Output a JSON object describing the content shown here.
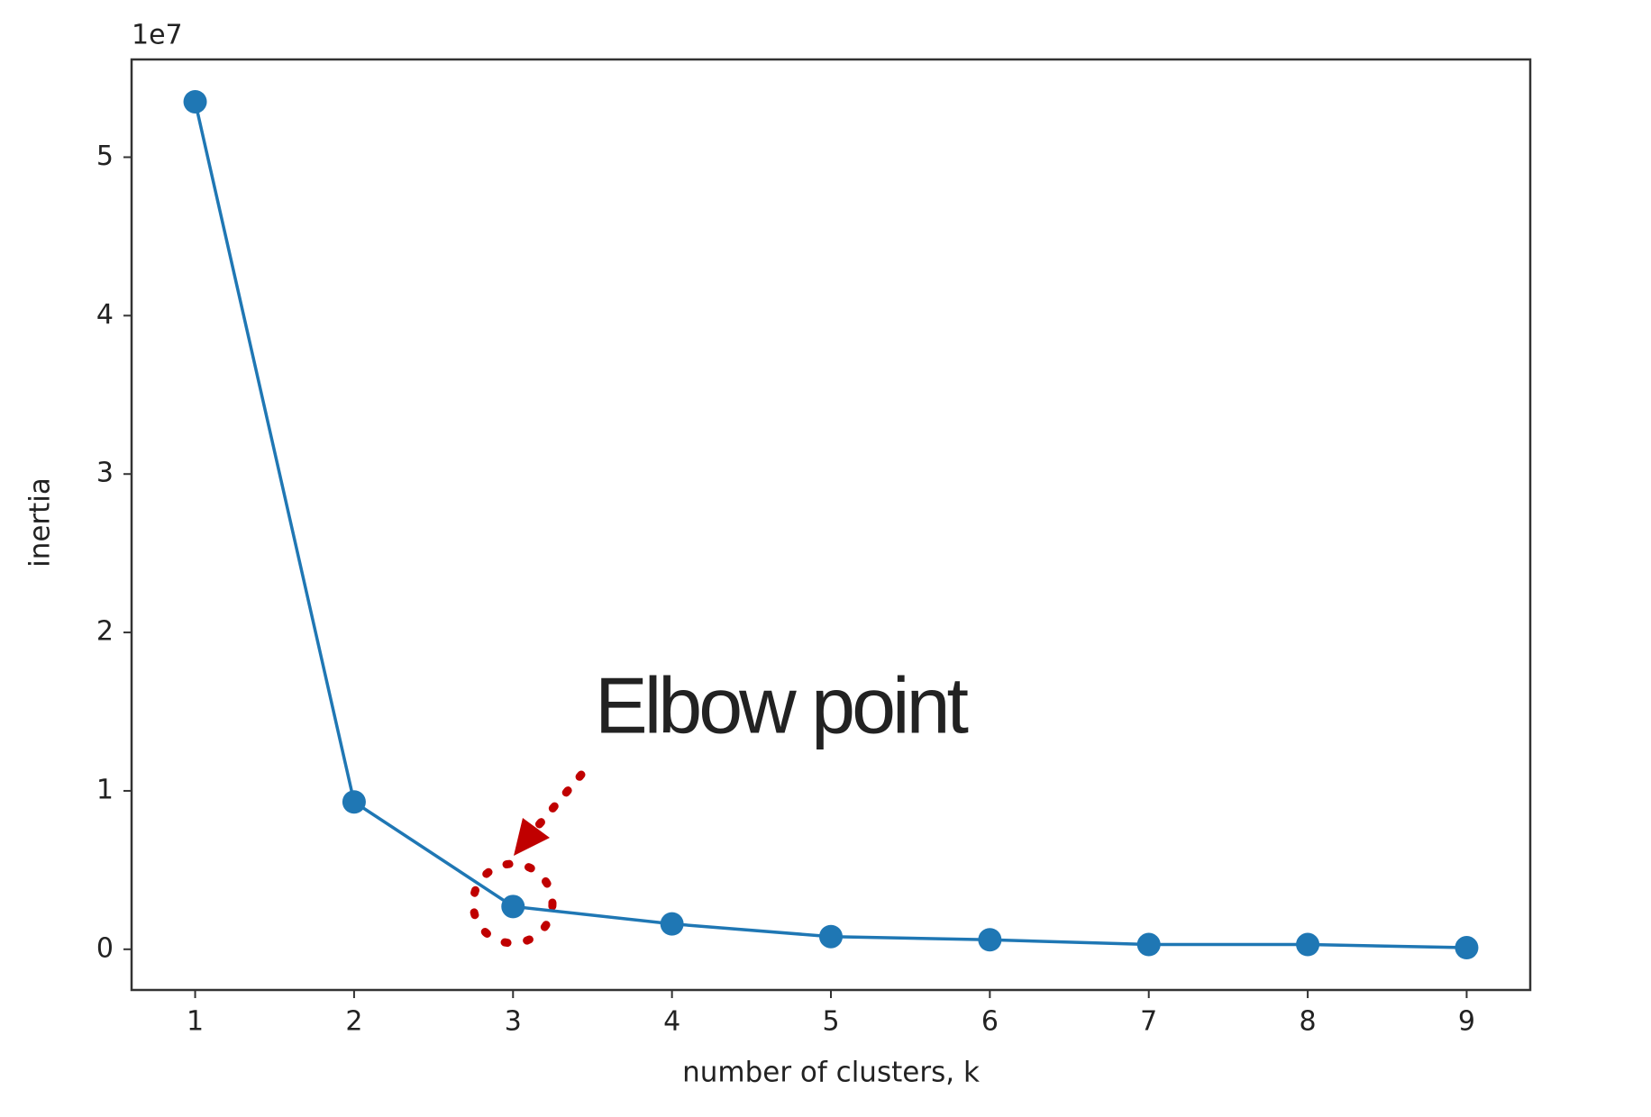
{
  "chart_data": {
    "type": "line",
    "offset_label": "1e7",
    "xlabel": "number of clusters, k",
    "ylabel": "inertia",
    "annotation": "Elbow point",
    "x": [
      1,
      2,
      3,
      4,
      5,
      6,
      7,
      8,
      9
    ],
    "values": [
      5.35,
      0.93,
      0.27,
      0.16,
      0.08,
      0.06,
      0.03,
      0.03,
      0.01
    ],
    "color": "#1f77b4",
    "xlim": [
      0.6,
      9.4
    ],
    "xticks": [
      1,
      2,
      3,
      4,
      5,
      6,
      7,
      8,
      9
    ],
    "ylim": [
      -0.257,
      5.617
    ],
    "yticks": [
      0,
      1,
      2,
      3,
      4,
      5
    ],
    "grid": false
  }
}
